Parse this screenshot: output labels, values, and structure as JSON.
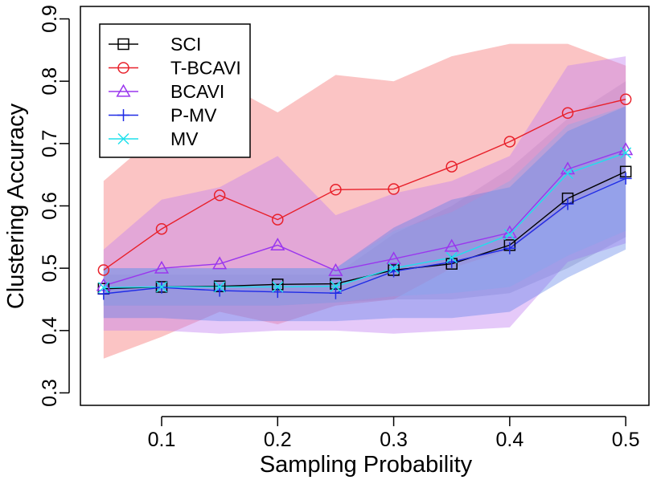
{
  "chart_data": {
    "type": "line",
    "title": "",
    "xlabel": "Sampling Probability",
    "ylabel": "Clustering Accuracy",
    "x": [
      0.05,
      0.1,
      0.15,
      0.2,
      0.25,
      0.3,
      0.35,
      0.4,
      0.45,
      0.5
    ],
    "xlim": [
      0.03,
      0.52
    ],
    "ylim": [
      0.28,
      0.92
    ],
    "xticks": [
      0.1,
      0.2,
      0.3,
      0.4,
      0.5
    ],
    "xtick_labels": [
      "0.1",
      "0.2",
      "0.3",
      "0.4",
      "0.5"
    ],
    "yticks": [
      0.3,
      0.4,
      0.5,
      0.6,
      0.7,
      0.8,
      0.9
    ],
    "ytick_labels": [
      "0.3",
      "0.4",
      "0.5",
      "0.6",
      "0.7",
      "0.8",
      "0.9"
    ],
    "legend_position": "top-left",
    "grid": false,
    "series": [
      {
        "name": "SCI",
        "color": "#000000",
        "marker": "square",
        "values": [
          0.467,
          0.47,
          0.471,
          0.474,
          0.475,
          0.497,
          0.507,
          0.537,
          0.612,
          0.655
        ],
        "band_color": "#a6a6c4",
        "band_opacity": 0.45,
        "band_lower": [
          0.44,
          0.44,
          0.44,
          0.44,
          0.445,
          0.45,
          0.45,
          0.46,
          0.5,
          0.55
        ],
        "band_upper": [
          0.49,
          0.49,
          0.49,
          0.49,
          0.49,
          0.555,
          0.6,
          0.66,
          0.74,
          0.8
        ]
      },
      {
        "name": "T-BCAVI",
        "color": "#e8202a",
        "marker": "circle",
        "values": [
          0.497,
          0.563,
          0.617,
          0.578,
          0.626,
          0.627,
          0.663,
          0.703,
          0.749,
          0.771
        ],
        "band_color": "#f88a8a",
        "band_opacity": 0.5,
        "band_lower": [
          0.355,
          0.39,
          0.43,
          0.41,
          0.44,
          0.45,
          0.5,
          0.53,
          0.6,
          0.65
        ],
        "band_upper": [
          0.64,
          0.72,
          0.8,
          0.75,
          0.81,
          0.8,
          0.84,
          0.86,
          0.86,
          0.825
        ]
      },
      {
        "name": "BCAVI",
        "color": "#9a36ee",
        "marker": "triangle",
        "values": [
          0.472,
          0.5,
          0.507,
          0.537,
          0.496,
          0.515,
          0.535,
          0.557,
          0.659,
          0.69
        ],
        "band_color": "#c07ef0",
        "band_opacity": 0.42,
        "band_lower": [
          0.4,
          0.4,
          0.395,
          0.4,
          0.4,
          0.395,
          0.4,
          0.405,
          0.51,
          0.54
        ],
        "band_upper": [
          0.53,
          0.61,
          0.63,
          0.68,
          0.585,
          0.62,
          0.64,
          0.68,
          0.825,
          0.84
        ]
      },
      {
        "name": "P-MV",
        "color": "#1f2be6",
        "marker": "plus",
        "values": [
          0.459,
          0.469,
          0.464,
          0.462,
          0.46,
          0.495,
          0.51,
          0.532,
          0.603,
          0.644
        ],
        "band_color": "#5a7ee8",
        "band_opacity": 0.38,
        "band_lower": [
          0.42,
          0.42,
          0.415,
          0.415,
          0.415,
          0.42,
          0.42,
          0.43,
          0.485,
          0.53
        ],
        "band_upper": [
          0.5,
          0.5,
          0.5,
          0.5,
          0.5,
          0.565,
          0.61,
          0.63,
          0.72,
          0.76
        ]
      },
      {
        "name": "MV",
        "color": "#1fe0ec",
        "marker": "x",
        "values": [
          0.469,
          0.47,
          0.47,
          0.47,
          0.471,
          0.5,
          0.517,
          0.554,
          0.652,
          0.685
        ],
        "band_color": "#7aa8f0",
        "band_opacity": 0.3,
        "band_lower": [
          0.44,
          0.44,
          0.44,
          0.44,
          0.445,
          0.455,
          0.46,
          0.47,
          0.52,
          0.56
        ],
        "band_upper": [
          0.5,
          0.5,
          0.5,
          0.5,
          0.5,
          0.56,
          0.59,
          0.64,
          0.73,
          0.76
        ]
      }
    ]
  }
}
